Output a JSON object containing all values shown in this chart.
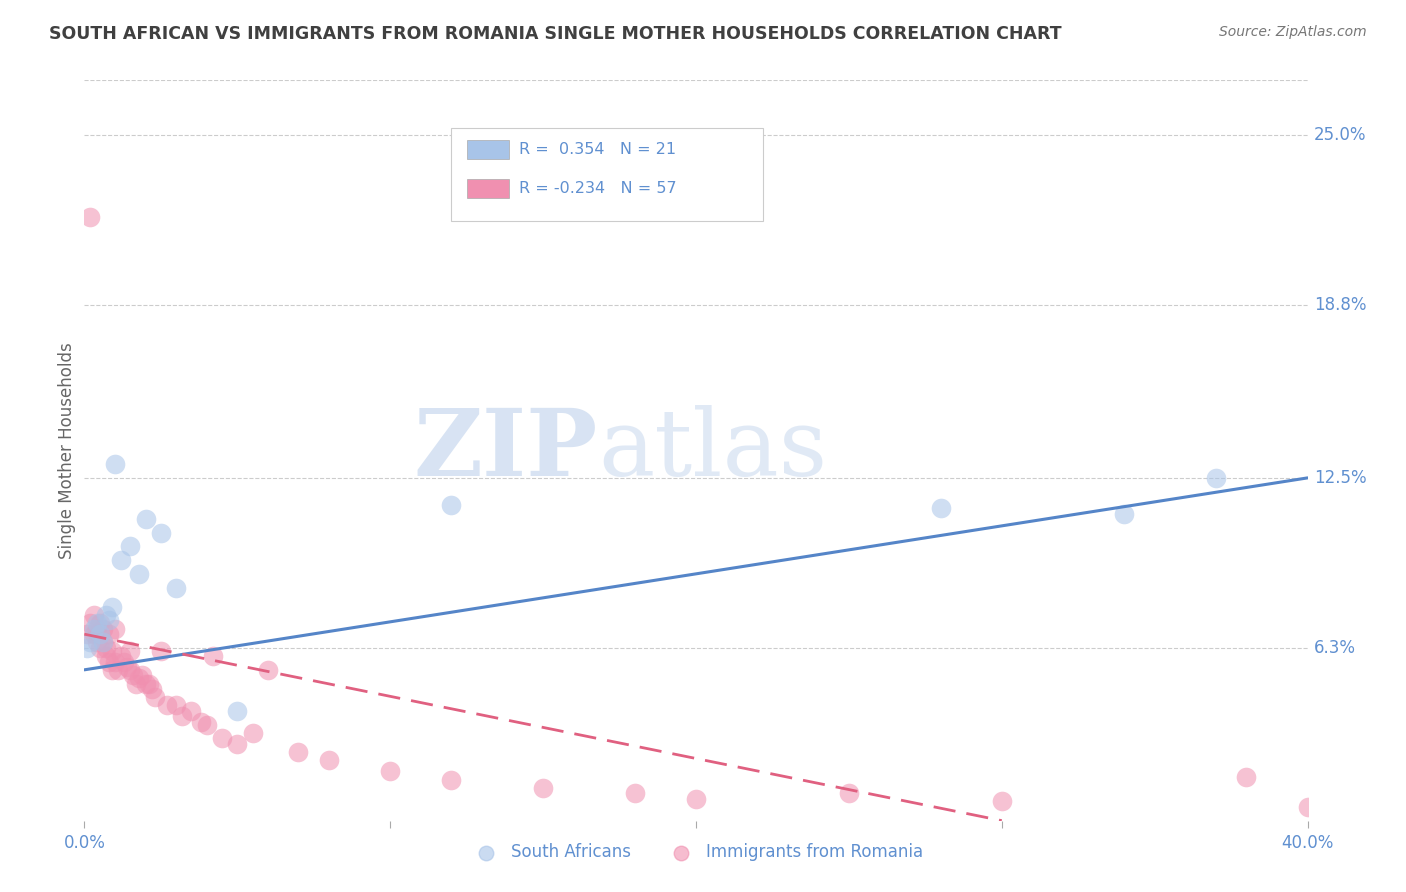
{
  "title": "SOUTH AFRICAN VS IMMIGRANTS FROM ROMANIA SINGLE MOTHER HOUSEHOLDS CORRELATION CHART",
  "source": "Source: ZipAtlas.com",
  "ylabel": "Single Mother Households",
  "legend_labels": [
    "South Africans",
    "Immigrants from Romania"
  ],
  "r_values": [
    0.354,
    -0.234
  ],
  "n_values": [
    21,
    57
  ],
  "ytick_labels": [
    "25.0%",
    "18.8%",
    "12.5%",
    "6.3%"
  ],
  "ytick_values": [
    0.25,
    0.188,
    0.125,
    0.063
  ],
  "xlim": [
    0.0,
    0.4
  ],
  "ylim": [
    0.0,
    0.27
  ],
  "blue_color": "#a8c4e8",
  "pink_color": "#f090b0",
  "blue_line_color": "#5585c8",
  "pink_line_color": "#e06080",
  "axis_label_color": "#6090d0",
  "title_color": "#404040",
  "source_color": "#777777",
  "ylabel_color": "#666666",
  "watermark_color": "#d5e4f5",
  "south_african_x": [
    0.001,
    0.002,
    0.003,
    0.004,
    0.005,
    0.006,
    0.007,
    0.008,
    0.009,
    0.01,
    0.012,
    0.015,
    0.018,
    0.02,
    0.025,
    0.03,
    0.05,
    0.12,
    0.28,
    0.34,
    0.37
  ],
  "south_african_y": [
    0.063,
    0.065,
    0.07,
    0.072,
    0.068,
    0.065,
    0.075,
    0.073,
    0.078,
    0.13,
    0.095,
    0.1,
    0.09,
    0.11,
    0.105,
    0.085,
    0.04,
    0.115,
    0.114,
    0.112,
    0.125
  ],
  "romania_x": [
    0.001,
    0.002,
    0.002,
    0.003,
    0.003,
    0.004,
    0.004,
    0.005,
    0.005,
    0.005,
    0.006,
    0.006,
    0.007,
    0.007,
    0.008,
    0.008,
    0.009,
    0.009,
    0.01,
    0.01,
    0.011,
    0.012,
    0.013,
    0.014,
    0.015,
    0.015,
    0.016,
    0.017,
    0.018,
    0.019,
    0.02,
    0.021,
    0.022,
    0.023,
    0.025,
    0.027,
    0.03,
    0.032,
    0.035,
    0.038,
    0.04,
    0.042,
    0.045,
    0.05,
    0.055,
    0.06,
    0.07,
    0.08,
    0.1,
    0.12,
    0.15,
    0.18,
    0.2,
    0.25,
    0.3,
    0.38,
    0.4
  ],
  "romania_y": [
    0.068,
    0.22,
    0.072,
    0.075,
    0.068,
    0.07,
    0.065,
    0.072,
    0.068,
    0.063,
    0.07,
    0.065,
    0.063,
    0.06,
    0.068,
    0.058,
    0.062,
    0.055,
    0.07,
    0.058,
    0.055,
    0.06,
    0.058,
    0.056,
    0.062,
    0.055,
    0.053,
    0.05,
    0.052,
    0.053,
    0.05,
    0.05,
    0.048,
    0.045,
    0.062,
    0.042,
    0.042,
    0.038,
    0.04,
    0.036,
    0.035,
    0.06,
    0.03,
    0.028,
    0.032,
    0.055,
    0.025,
    0.022,
    0.018,
    0.015,
    0.012,
    0.01,
    0.008,
    0.01,
    0.007,
    0.016,
    0.005
  ],
  "blue_line_x": [
    0.0,
    0.4
  ],
  "blue_line_y": [
    0.055,
    0.125
  ],
  "pink_line_x": [
    0.0,
    0.3
  ],
  "pink_line_y": [
    0.068,
    0.0
  ]
}
